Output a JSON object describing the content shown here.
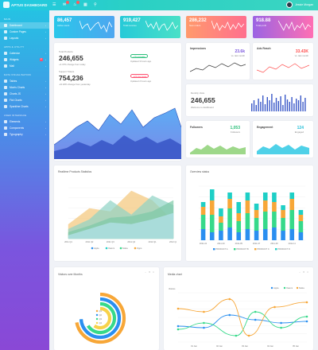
{
  "app": {
    "logo_text": "APTUS DASHBOARD",
    "user_name": "Jessie Morgan"
  },
  "sidebar": {
    "sections": [
      {
        "title": "Main",
        "items": [
          {
            "label": "Dashboard",
            "active": true
          },
          {
            "label": "Custom Pages"
          },
          {
            "label": "Layouts"
          }
        ]
      },
      {
        "title": "Apps & Utility",
        "items": [
          {
            "label": "Calendar"
          },
          {
            "label": "Widgets",
            "badge": "2"
          },
          {
            "label": "Mail"
          }
        ]
      },
      {
        "title": "Data Visualisation",
        "items": [
          {
            "label": "Tables"
          },
          {
            "label": "Morris Charts"
          },
          {
            "label": "Charts JS"
          },
          {
            "label": "Flot Charts"
          },
          {
            "label": "Sparkline Charts"
          }
        ]
      },
      {
        "title": "User Interface",
        "items": [
          {
            "label": "Elements"
          },
          {
            "label": "Components"
          },
          {
            "label": "Typography"
          }
        ]
      }
    ]
  },
  "kpis": [
    {
      "value": "86,457",
      "label": "Active users",
      "color_a": "#29c7ea",
      "color_b": "#4ea6f0"
    },
    {
      "value": "919,427",
      "label": "Total revenue",
      "color_a": "#26cad8",
      "color_b": "#49e0c7"
    },
    {
      "value": "286,232",
      "label": "New orders",
      "color_a": "#ff9a6c",
      "color_b": "#ff6f8e"
    },
    {
      "value": "918.88",
      "label": "Total profit",
      "color_a": "#9b63e4",
      "color_b": "#ff6fb3"
    }
  ],
  "big_panel": {
    "stat1": {
      "label": "Total Products",
      "value": "246,655",
      "sub": "+3.47% change from today",
      "pill": "+7% increase",
      "pill_sub": "Updated 3 hours ago"
    },
    "stat2": {
      "label": "Support Tickets",
      "value": "754,236",
      "sub": "-24.18% change from yesterday",
      "pill": "-12% decrease",
      "pill_sub": "Updated 2 hours ago"
    }
  },
  "small_cards": {
    "impressions": {
      "title": "Impressions",
      "value": "23.6k",
      "sub": "vs. last month"
    },
    "ads_reach": {
      "title": "Ads Reach",
      "value": "33.43K",
      "sub": "vs. last month"
    },
    "monthly": {
      "title": "Monthly Visits",
      "value": "246,655",
      "sub": "Welcome to dashboard"
    },
    "followers": {
      "title": "Followers",
      "value": "1,053",
      "sub": "Followers"
    },
    "engagement": {
      "title": "Engagement",
      "value": "124",
      "sub": "Engaged"
    }
  },
  "realtime": {
    "title": "Realtime Products Statistics",
    "legend": [
      "Apple",
      "Xiaomi",
      "Nokia",
      "Oppo"
    ],
    "x_ticks": [
      "2011 Q1",
      "2011 Q2",
      "2011 Q3",
      "2011 Q4",
      "2012 Q1",
      "2012 Q2"
    ]
  },
  "overview": {
    "title": "Overview status",
    "legend": [
      "PRODUCT A",
      "PRODUCT B",
      "PRODUCT C",
      "PRODUCT D"
    ],
    "x_ticks": [
      "2011-01",
      "2011-02",
      "2011-03",
      "2011-04",
      "2011-05",
      "2011-06",
      "2011-07",
      "2011-08",
      "2011-09",
      "2011-10",
      "2011-11",
      "2011-12"
    ]
  },
  "visitors": {
    "title": "Visitors over Months",
    "legend": [
      "Q1",
      "Q2",
      "Q3",
      "Q4"
    ]
  },
  "media": {
    "title": "Media chart",
    "legend": [
      "Apple",
      "Xiaomi",
      "Nokia"
    ],
    "y_label": "Visitors",
    "x_ticks": [
      "01 Jan",
      "02 Jan",
      "03 Jan",
      "04 Jan",
      "05 Jan"
    ]
  },
  "colors": {
    "teal": "#1ecfc6",
    "blue": "#2a8ff0",
    "orange": "#f7a738",
    "green": "#36d98a",
    "purple": "#7a55de"
  }
}
